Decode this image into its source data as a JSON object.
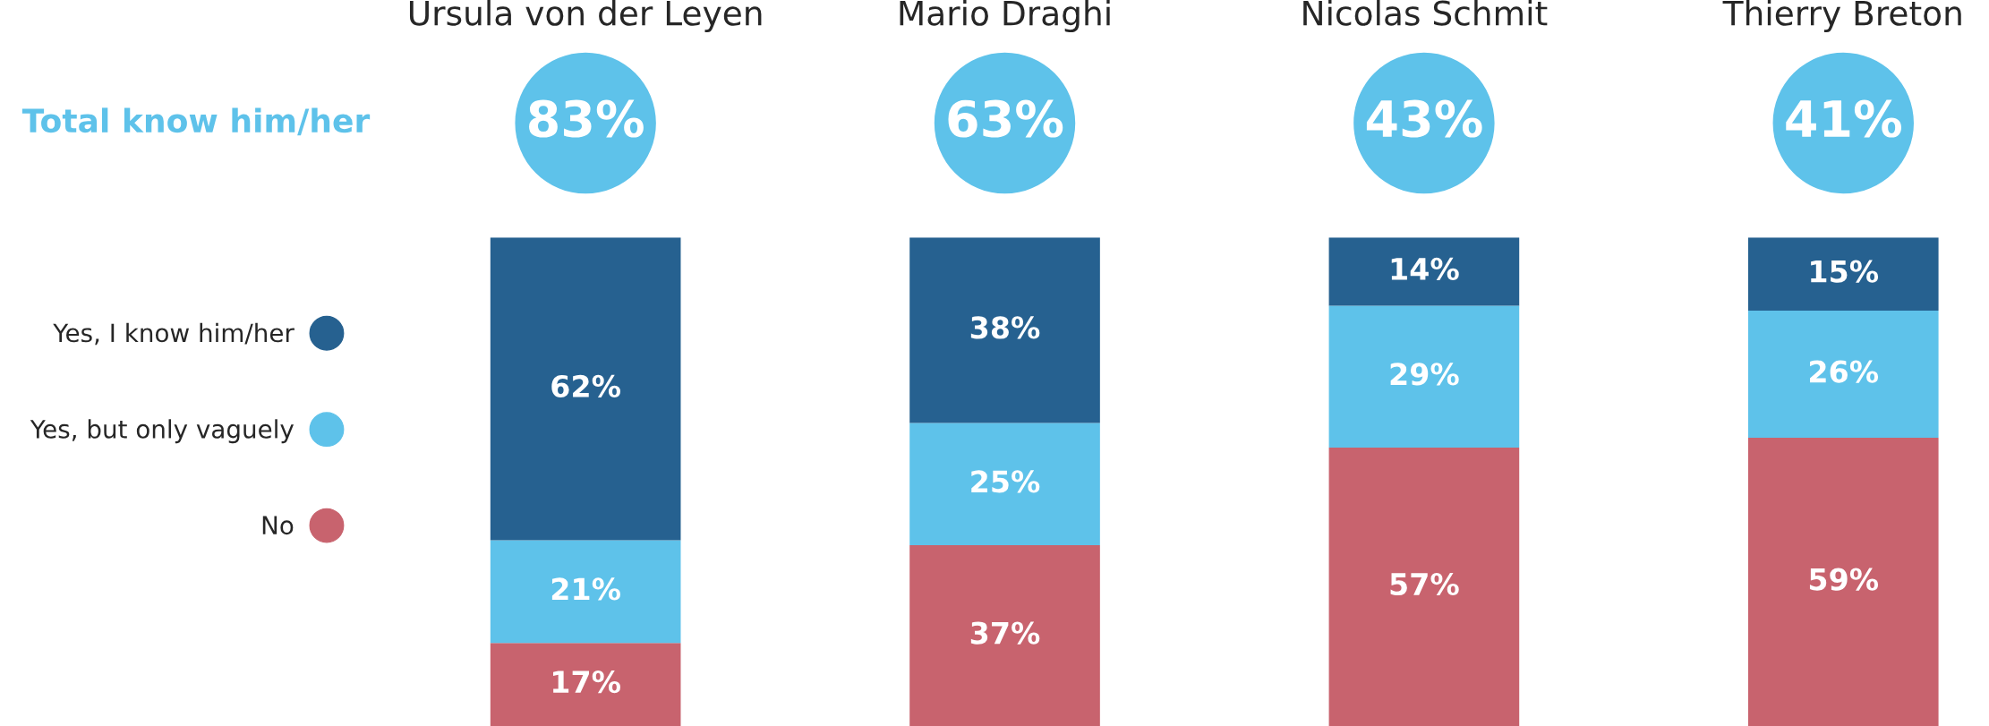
{
  "chart_data": {
    "type": "bar",
    "stacked": true,
    "categories": [
      "Ursula von der Leyen",
      "Mario Draghi",
      "Nicolas Schmit",
      "Thierry Breton"
    ],
    "series": [
      {
        "name": "No",
        "color": "#c8636e",
        "values": [
          17,
          37,
          57,
          59
        ],
        "value_labels": [
          "17%",
          "37%",
          "57%",
          "59%"
        ]
      },
      {
        "name": "Yes, but only vaguely",
        "color": "#5ec2ea",
        "values": [
          21,
          25,
          29,
          26
        ],
        "value_labels": [
          "21%",
          "25%",
          "29%",
          "26%"
        ]
      },
      {
        "name": "Yes, I know him/her",
        "color": "#266190",
        "values": [
          62,
          38,
          14,
          15
        ],
        "value_labels": [
          "62%",
          "38%",
          "14%",
          "15%"
        ]
      }
    ],
    "annotations": [
      "Total know him/her",
      "83%",
      "63%",
      "43%",
      "41%"
    ],
    "legend": "left",
    "grid": false
  }
}
